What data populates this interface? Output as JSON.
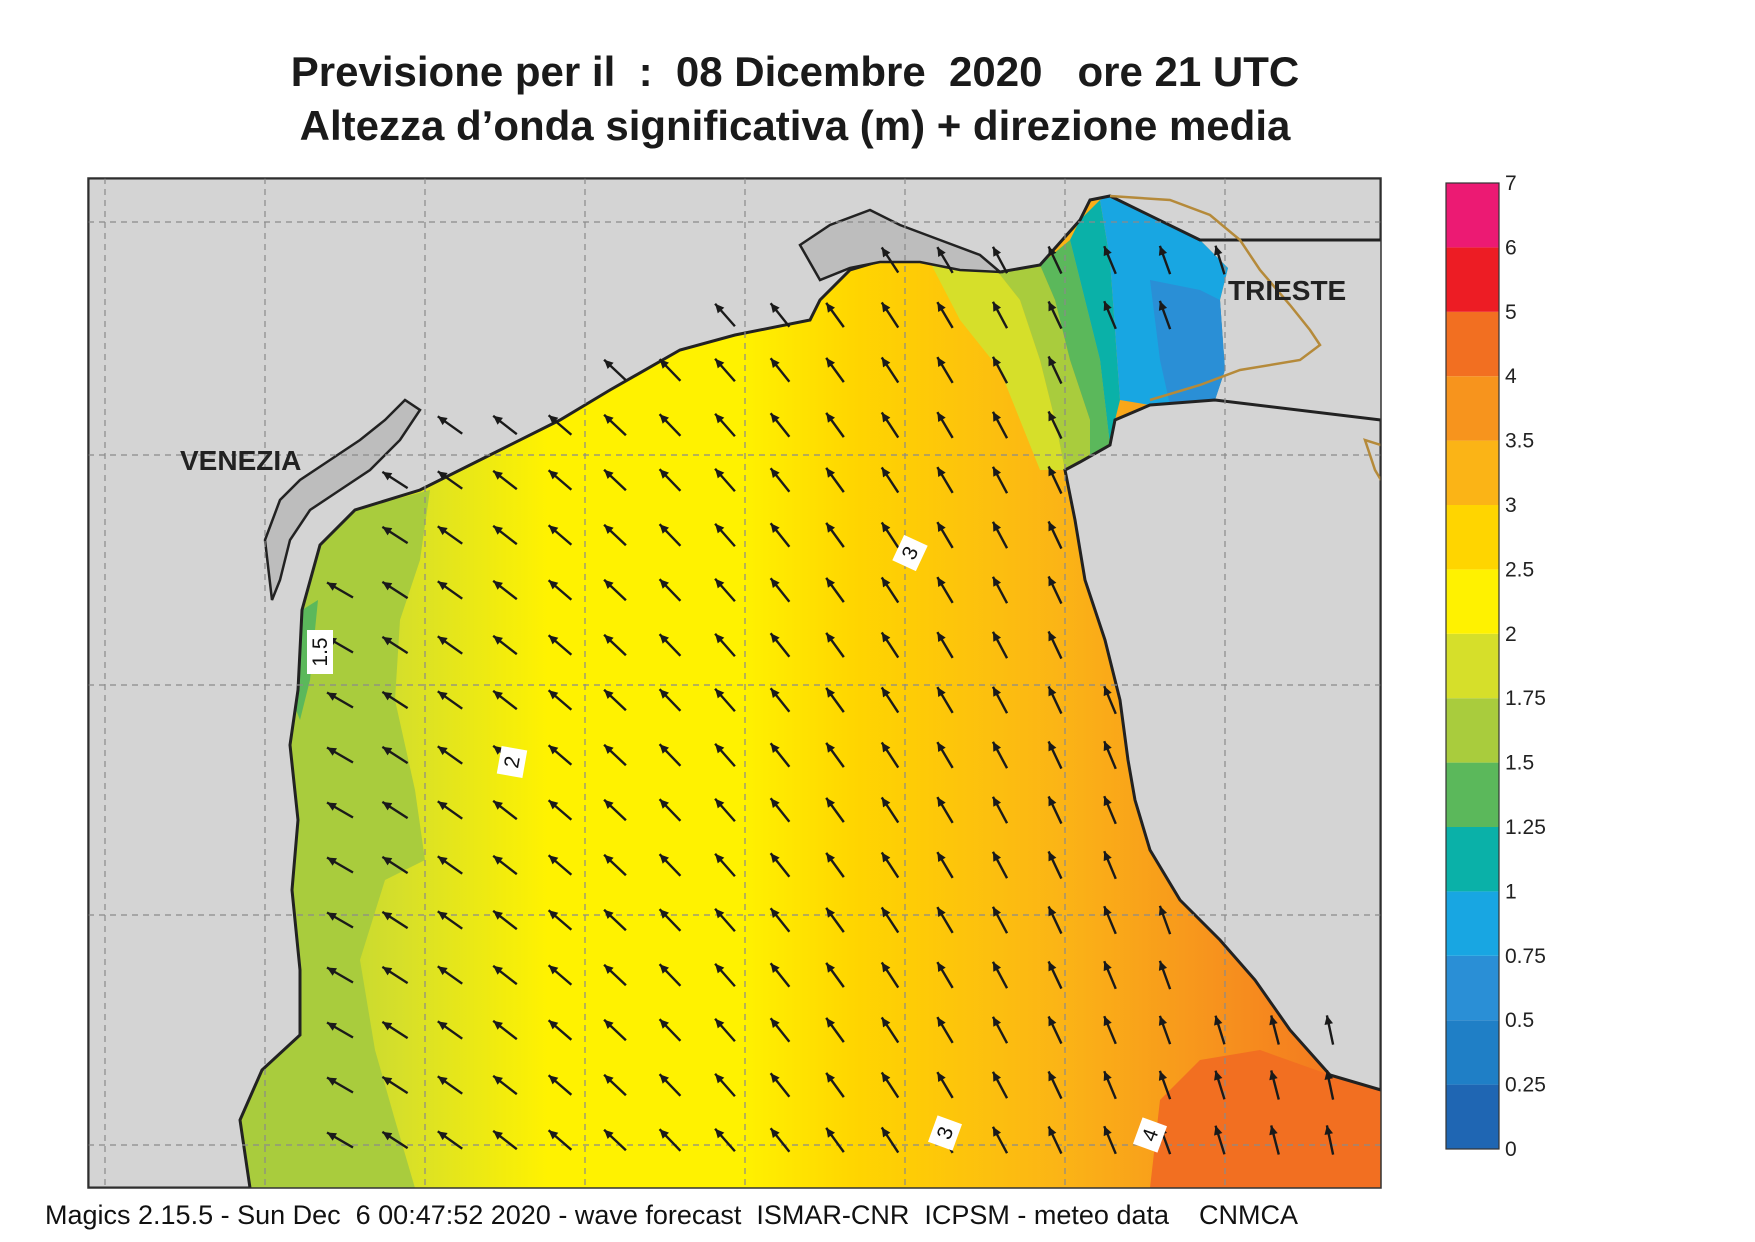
{
  "title": {
    "line1": "Previsione per il  :  08 Dicembre  2020   ore 21 UTC",
    "line2": "Altezza d’onda significativa (m) + direzione media"
  },
  "places": [
    {
      "name": "VENEZIA"
    },
    {
      "name": "TRIESTE"
    }
  ],
  "contour_labels": [
    "1.5",
    "2",
    "3",
    "3",
    "4"
  ],
  "legend": {
    "ticks": [
      "0",
      "0.25",
      "0.5",
      "0.75",
      "1",
      "1.25",
      "1.5",
      "1.75",
      "2",
      "2.5",
      "3",
      "3.5",
      "4",
      "5",
      "6",
      "7"
    ],
    "colors": [
      "#1f66b3",
      "#1f7fc6",
      "#2a8fd6",
      "#18a6e2",
      "#0ab1a8",
      "#5bb85b",
      "#a9cc3d",
      "#d6df2a",
      "#fff200",
      "#ffd500",
      "#fbb416",
      "#f7941d",
      "#f26f21",
      "#ed1c24",
      "#ec1a73"
    ]
  },
  "colors": {
    "land": "#d4d4d4",
    "coast": "#222222",
    "border": "#b58a3a",
    "grid": "#8a8a8a"
  },
  "footer": "Magics 2.15.5 - Sun Dec  6 00:47:52 2020 - wave forecast  ISMAR-CNR  ICPSM - meteo data    CNMCA"
}
